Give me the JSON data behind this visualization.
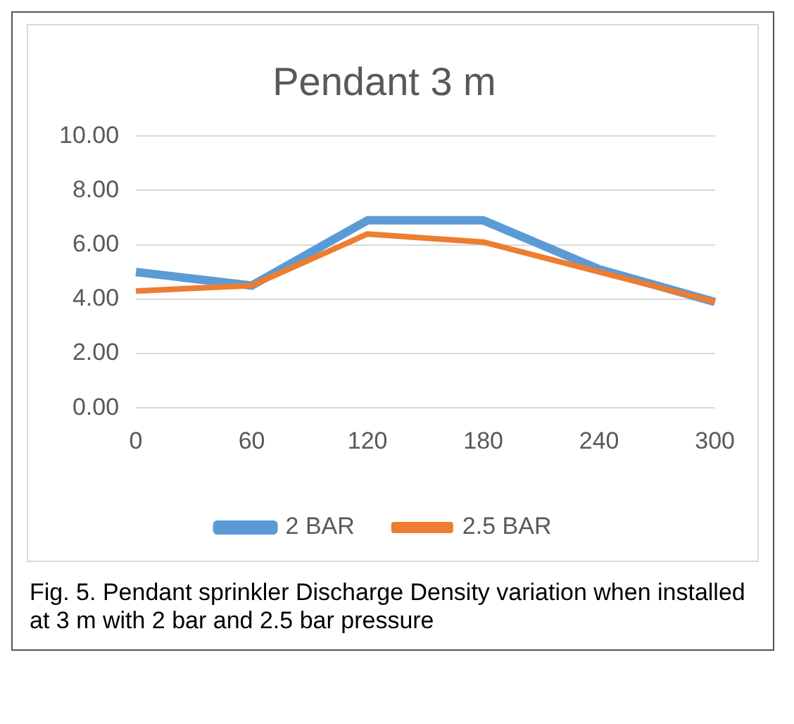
{
  "chart_data": {
    "type": "line",
    "title": "Pendant 3 m",
    "categories": [
      "0",
      "60",
      "120",
      "180",
      "240",
      "300"
    ],
    "series": [
      {
        "name": "2 BAR",
        "color": "#5b9bd5",
        "values": [
          5.0,
          4.5,
          6.9,
          6.9,
          5.1,
          3.9
        ]
      },
      {
        "name": "2.5 BAR",
        "color": "#ed7d31",
        "values": [
          4.3,
          4.5,
          6.4,
          6.1,
          5.0,
          3.9
        ]
      }
    ],
    "ylim": [
      0,
      10
    ],
    "yticks": [
      {
        "value": 0,
        "label": "0.00"
      },
      {
        "value": 2,
        "label": "2.00"
      },
      {
        "value": 4,
        "label": "4.00"
      },
      {
        "value": 6,
        "label": "6.00"
      },
      {
        "value": 8,
        "label": "8.00"
      },
      {
        "value": 10,
        "label": "10.00"
      }
    ],
    "grid": "y",
    "legend": "bottom",
    "marker": "none",
    "line_style": "solid",
    "annotations": [
      "Fig. 5. Pendant sprinkler Discharge Density variation when installed at 3 m with 2 bar and 2.5 bar pressure"
    ]
  }
}
